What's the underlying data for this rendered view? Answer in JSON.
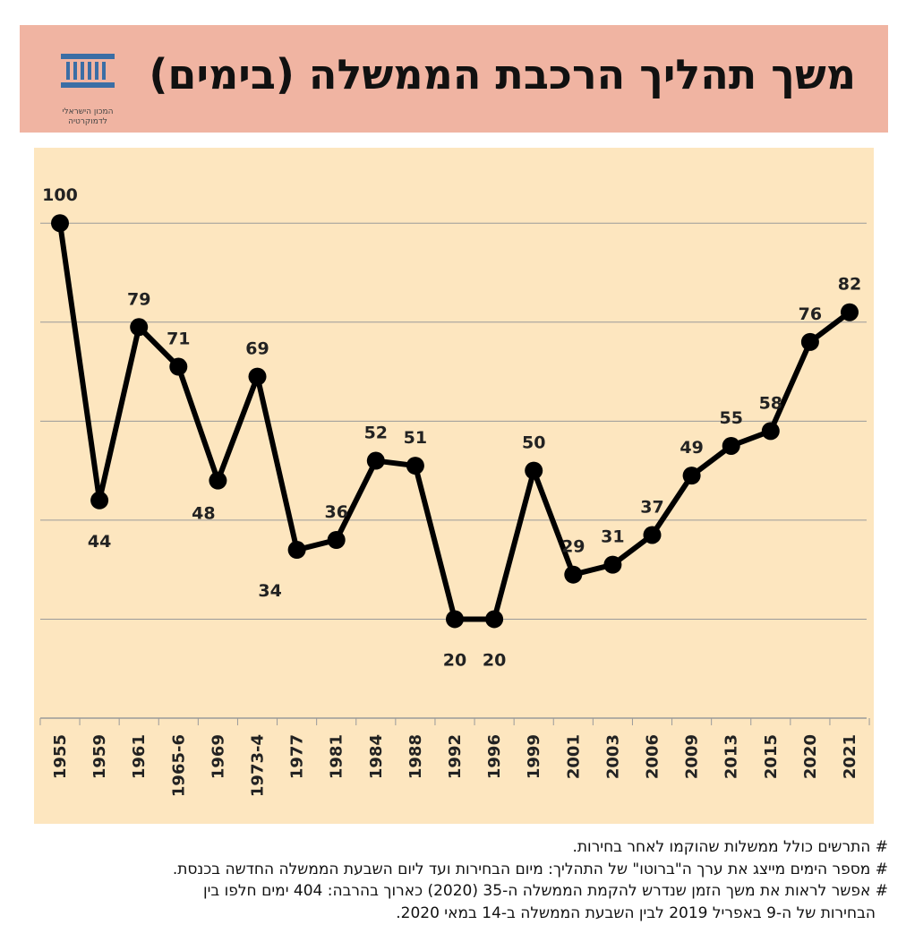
{
  "header": {
    "title": "משך תהליך הרכבת הממשלה (בימים)",
    "logo_line1": "המכון הישראלי",
    "logo_line2": "לדמוקרטיה",
    "background": "#f0b4a2"
  },
  "chart_data": {
    "type": "line",
    "categories": [
      "1955",
      "1959",
      "1961",
      "1965-6",
      "1969",
      "1973-4",
      "1977",
      "1981",
      "1984",
      "1988",
      "1992",
      "1996",
      "1999",
      "2001",
      "2003",
      "2006",
      "2009",
      "2013",
      "2015",
      "2020",
      "2021"
    ],
    "values": [
      100,
      44,
      79,
      71,
      48,
      69,
      34,
      36,
      52,
      51,
      20,
      20,
      50,
      29,
      31,
      37,
      49,
      55,
      58,
      76,
      82
    ],
    "ylim": [
      0,
      110
    ],
    "grid": true,
    "line_color": "#000000",
    "background": "#fde6bf",
    "title": "",
    "xlabel": "",
    "ylabel": ""
  },
  "notes": [
    "# התרשים כולל ממשלות שהוקמו לאחר בחירות.",
    "# מספר הימים מייצג את ערך ה\"ברוטו\" של התהליך: מיום הבחירות ועד ליום השבעת הממשלה החדשה בכנסת.",
    "# אפשר לראות את משך הזמן שנדרש להקמת הממשלה ה-35 (2020) כארוך בהרבה: 404 ימים חלפו בין",
    "הבחירות של ה-9 באפריל 2019 לבין השבעת הממשלה ב-14 במאי 2020."
  ]
}
